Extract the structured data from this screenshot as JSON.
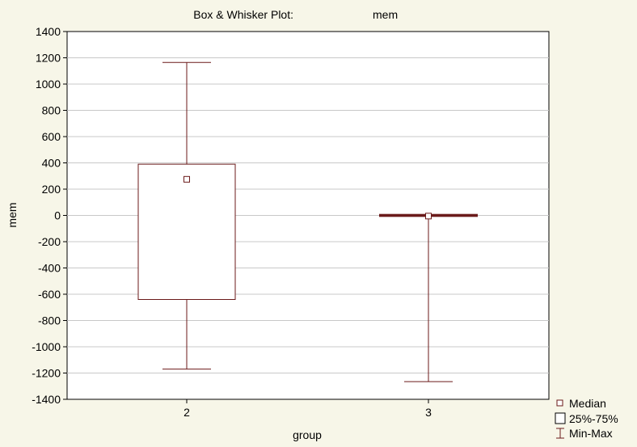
{
  "chart_data": {
    "type": "boxplot",
    "title": "Box & Whisker Plot:",
    "variable": "mem",
    "xlabel": "group",
    "ylabel": "mem",
    "ylim": [
      -1400,
      1400
    ],
    "yticks": [
      1400,
      1200,
      1000,
      800,
      600,
      400,
      200,
      0,
      -200,
      -400,
      -600,
      -800,
      -1000,
      -1200,
      -1400
    ],
    "grid": true,
    "legend_position": "bottom-right",
    "categories": [
      "2",
      "3"
    ],
    "boxes": [
      {
        "category": "2",
        "min": -1170,
        "q1": -640,
        "median": 275,
        "q3": 390,
        "max": 1165
      },
      {
        "category": "3",
        "min": -1265,
        "q1": -5,
        "median": -5,
        "q3": 5,
        "max": 5
      }
    ],
    "legend": [
      {
        "key": "median",
        "label": "Median"
      },
      {
        "key": "box",
        "label": "25%-75%"
      },
      {
        "key": "range",
        "label": "Min-Max"
      }
    ],
    "colors": {
      "stroke": "#6b1a1a",
      "background": "#f7f6e8",
      "plot": "#ffffff",
      "grid": "#c8c8c8"
    }
  }
}
